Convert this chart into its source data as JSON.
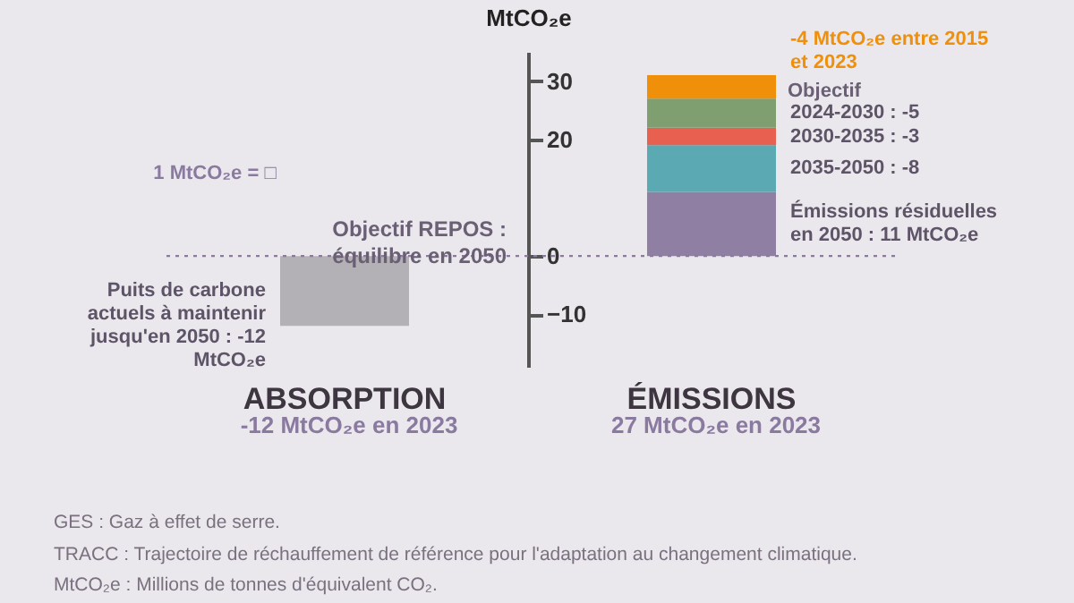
{
  "chart_data": {
    "type": "bar",
    "stacked": true,
    "categories": [
      "ABSORPTION",
      "ÉMISSIONS"
    ],
    "ylabel": "MtCO₂e",
    "series": [
      {
        "name": "Puits de carbone actuels à maintenir jusqu'en 2050 : -12 MtCO₂e",
        "color": "#b4b1b6",
        "values": [
          -12,
          null
        ]
      },
      {
        "name": "Émissions résiduelles en 2050 : 11 MtCO₂e",
        "color": "#8e7fa3",
        "values": [
          null,
          11
        ]
      },
      {
        "name": "2035-2050 : -8",
        "color": "#5aa9b3",
        "values": [
          null,
          8
        ]
      },
      {
        "name": "2030-2035 : -3",
        "color": "#e8604f",
        "values": [
          null,
          3
        ]
      },
      {
        "name": "2024-2030 : -5",
        "color": "#7f9f70",
        "values": [
          null,
          5
        ]
      },
      {
        "name": "-4 MtCO₂e entre 2015 et 2023",
        "color": "#f0900a",
        "values": [
          null,
          4
        ]
      }
    ],
    "ylim": [
      -19,
      35
    ],
    "yticks": [
      -10,
      0,
      20,
      30
    ],
    "ref_lines": [
      {
        "axis": "y",
        "value": 0,
        "label": "Objectif REPOS : équilibre en 2050",
        "line_style": "dotted",
        "color": "#8a7aa0"
      }
    ],
    "annotations": [
      "Objectif",
      "1 MtCO₂e = □",
      "-12 MtCO₂e en 2023",
      "27 MtCO₂e en 2023",
      "GES : Gaz à effet de serre.",
      "TRACC : Trajectoire de réchauffement de référence pour l'adaptation au changement climatique.",
      "MtCO₂e : Millions de tonnes d'équivalent CO₂."
    ]
  }
}
